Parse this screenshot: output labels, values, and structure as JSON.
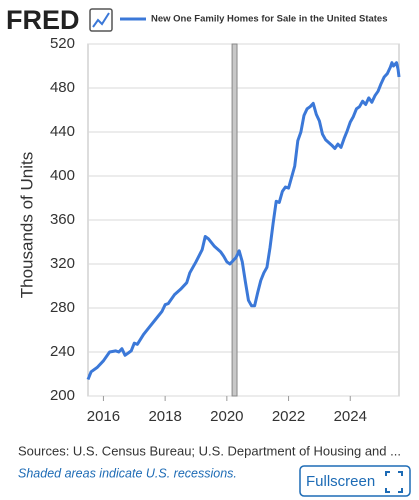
{
  "logo": "FRED",
  "chart_data": {
    "type": "line",
    "ylabel": "Thousands of Units",
    "x": [
      2015.5,
      2015.6,
      2015.8,
      2016.0,
      2016.2,
      2016.4,
      2016.5,
      2016.6,
      2016.7,
      2016.9,
      2017.0,
      2017.1,
      2017.3,
      2017.5,
      2017.7,
      2017.9,
      2018.0,
      2018.1,
      2018.3,
      2018.5,
      2018.7,
      2018.8,
      2019.0,
      2019.2,
      2019.3,
      2019.4,
      2019.6,
      2019.8,
      2019.9,
      2020.0,
      2020.1,
      2020.3,
      2020.4,
      2020.5,
      2020.6,
      2020.7,
      2020.8,
      2020.9,
      2021.0,
      2021.1,
      2021.2,
      2021.3,
      2021.4,
      2021.5,
      2021.6,
      2021.7,
      2021.8,
      2021.9,
      2022.0,
      2022.1,
      2022.2,
      2022.3,
      2022.4,
      2022.5,
      2022.6,
      2022.7,
      2022.8,
      2022.9,
      2023.0,
      2023.1,
      2023.2,
      2023.4,
      2023.5,
      2023.6,
      2023.7,
      2023.8,
      2023.9,
      2024.0,
      2024.1,
      2024.2,
      2024.3,
      2024.4,
      2024.5,
      2024.6,
      2024.7,
      2024.8,
      2024.9,
      2025.0,
      2025.1,
      2025.2,
      2025.3,
      2025.35,
      2025.4,
      2025.5,
      2025.55,
      2025.58
    ],
    "series": [
      {
        "name": "New One Family Homes for Sale in the United States",
        "color": "#3b78d8",
        "values": [
          215,
          222,
          226,
          232,
          240,
          241,
          240,
          243,
          237,
          241,
          248,
          247,
          256,
          263,
          270,
          277,
          283,
          284,
          292,
          297,
          303,
          312,
          322,
          333,
          345,
          343,
          336,
          331,
          327,
          322,
          320,
          326,
          332,
          322,
          304,
          287,
          282,
          282,
          294,
          305,
          312,
          317,
          335,
          357,
          377,
          376,
          386,
          390,
          389,
          399,
          409,
          432,
          440,
          455,
          461,
          463,
          466,
          456,
          450,
          438,
          433,
          428,
          425,
          429,
          426,
          434,
          441,
          449,
          454,
          461,
          463,
          468,
          465,
          471,
          467,
          473,
          477,
          484,
          490,
          493,
          499,
          503,
          500,
          503,
          497,
          490
        ]
      }
    ],
    "xlim": [
      2015.5,
      2025.58
    ],
    "xticks": [
      2016,
      2018,
      2020,
      2022,
      2024
    ],
    "ylim": [
      200,
      520
    ],
    "yticks": [
      200,
      240,
      280,
      320,
      360,
      400,
      440,
      480,
      520
    ],
    "grid": true,
    "recessions": [
      [
        2020.17,
        2020.33
      ]
    ]
  },
  "sources": "Sources: U.S. Census Bureau; U.S. Department of Housing and ...",
  "note": "Shaded areas indicate U.S. recessions.",
  "button": "Fullscreen"
}
